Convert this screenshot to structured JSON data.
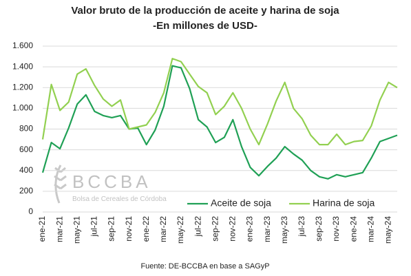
{
  "chart_data": {
    "type": "line",
    "title": "Valor bruto de la producción de aceite y harina de soja",
    "subtitle": "-En millones de USD-",
    "source": "Fuente: DE-BCCBA en base a SAGyP",
    "watermark": {
      "name": "BCCBA",
      "subtitle": "Bolsa de Cereales de Córdoba"
    },
    "categories": [
      "ene-21",
      null,
      "mar-21",
      null,
      "may-21",
      null,
      "jul-21",
      null,
      "sep-21",
      null,
      "nov-21",
      null,
      "ene-22",
      null,
      "mar-22",
      null,
      "may-22",
      null,
      "jul-22",
      null,
      "sep-22",
      null,
      "nov-22",
      null,
      "ene-23",
      null,
      "mar-23",
      null,
      "may-23",
      null,
      "jul-23",
      null,
      "sep-23",
      null,
      "nov-23",
      null,
      "ene-24",
      null,
      "mar-24",
      null,
      "may-24",
      null
    ],
    "series": [
      {
        "name": "Aceite de soja",
        "color": "#1fa055",
        "values": [
          380,
          670,
          610,
          810,
          1040,
          1130,
          970,
          930,
          910,
          930,
          800,
          810,
          650,
          790,
          1020,
          1410,
          1390,
          1190,
          890,
          820,
          670,
          720,
          890,
          630,
          430,
          350,
          440,
          520,
          630,
          560,
          500,
          400,
          340,
          320,
          360,
          340,
          360,
          380,
          520,
          680,
          710,
          740
        ]
      },
      {
        "name": "Harina de soja",
        "color": "#92d050",
        "values": [
          700,
          1230,
          980,
          1060,
          1330,
          1380,
          1220,
          1090,
          1020,
          1080,
          800,
          820,
          840,
          960,
          1150,
          1480,
          1450,
          1330,
          1210,
          1150,
          940,
          1020,
          1150,
          1000,
          800,
          650,
          850,
          1070,
          1250,
          1000,
          900,
          740,
          650,
          650,
          750,
          650,
          680,
          690,
          830,
          1080,
          1250,
          1200
        ]
      }
    ],
    "ylim": [
      0,
      1600
    ],
    "yticks": [
      0,
      200,
      400,
      600,
      800,
      {
        "value": 1000,
        "label": "1.000"
      },
      {
        "value": 1200,
        "label": "1.200"
      },
      {
        "value": 1400,
        "label": "1.400"
      },
      {
        "value": 1600,
        "label": "1.600"
      }
    ],
    "grid": true,
    "legend": "lower right"
  }
}
